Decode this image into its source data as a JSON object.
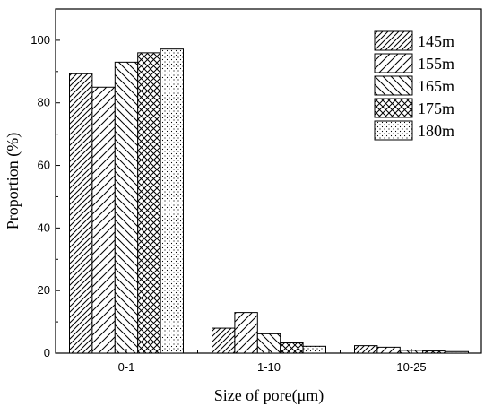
{
  "chart_data": {
    "type": "bar",
    "xlabel": "Size of pore(μm)",
    "ylabel": "Proportion (%)",
    "ylim": [
      0,
      110
    ],
    "yticks": [
      0,
      20,
      40,
      60,
      80,
      100
    ],
    "categories": [
      "0-1",
      "1-10",
      "10-25"
    ],
    "series": [
      {
        "name": "145m",
        "values": [
          89.3,
          8.0,
          2.4
        ],
        "pattern": "hatch-fwd"
      },
      {
        "name": "155m",
        "values": [
          85.0,
          13.0,
          1.9
        ],
        "pattern": "hatch-fwd-wide"
      },
      {
        "name": "165m",
        "values": [
          93.0,
          6.2,
          0.9
        ],
        "pattern": "hatch-back"
      },
      {
        "name": "175m",
        "values": [
          96.0,
          3.3,
          0.7
        ],
        "pattern": "crosshatch"
      },
      {
        "name": "180m",
        "values": [
          97.2,
          2.2,
          0.5
        ],
        "pattern": "dots"
      }
    ],
    "legend_position": "top-right",
    "grid": false
  }
}
